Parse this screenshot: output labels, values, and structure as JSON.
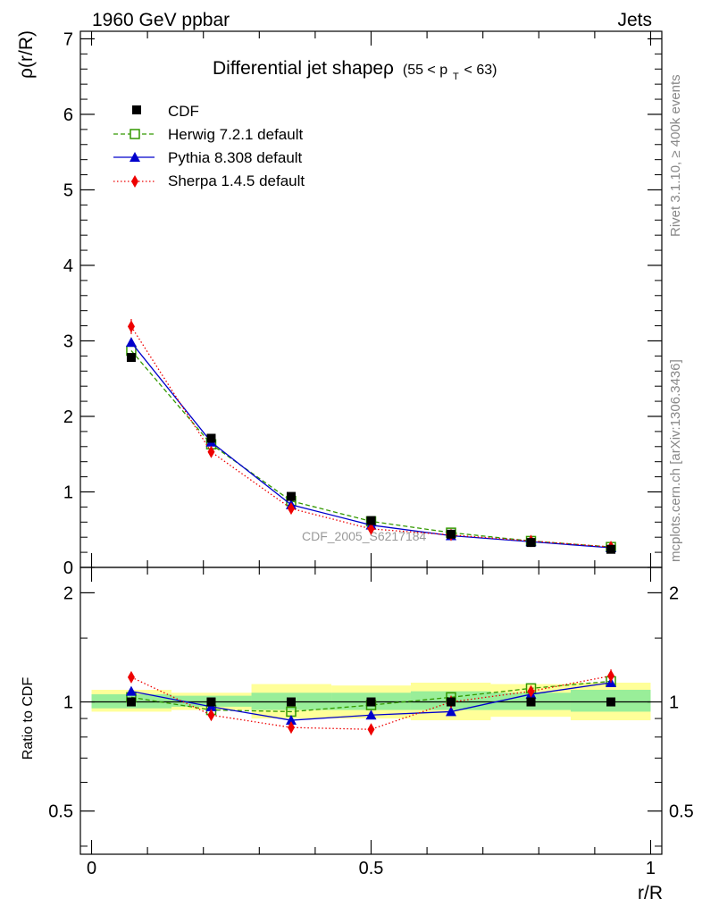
{
  "header": {
    "left": "1960 GeV ppbar",
    "right": "Jets"
  },
  "side": {
    "rivet": "Rivet 3.1.10, ≥ 400k events",
    "mcplots": "mcplots.cern.ch [arXiv:1306.3436]"
  },
  "chart_data": {
    "type": "line",
    "title": "Differential jet shapeρ",
    "title_suffix": "(55 < p",
    "title_sub": "T",
    "title_end": " < 63)",
    "ylabel": "ρ(r/R)",
    "xlabel": "r/R",
    "ratio_ylabel": "Ratio to CDF",
    "watermark": "CDF_2005_S6217184",
    "xlim": [
      -0.02,
      1.02
    ],
    "ylim": [
      0,
      7.1
    ],
    "ratio_ylim": [
      0.38,
      2.35
    ],
    "ratio_log": true,
    "xticks": [
      0,
      0.5,
      1
    ],
    "xtick_labels": [
      "0",
      "0.5",
      "1"
    ],
    "yticks": [
      0,
      1,
      2,
      3,
      4,
      5,
      6,
      7
    ],
    "ytick_labels": [
      "0",
      "1",
      "2",
      "3",
      "4",
      "5",
      "6",
      "7"
    ],
    "ratio_yticks": [
      0.5,
      1,
      2
    ],
    "ratio_ytick_labels": [
      "0.5",
      "1",
      "2"
    ],
    "x": [
      0.071,
      0.214,
      0.357,
      0.5,
      0.643,
      0.786,
      0.929
    ],
    "x_edges": [
      0,
      0.143,
      0.286,
      0.429,
      0.571,
      0.714,
      0.857,
      1.0
    ],
    "band_inner": [
      [
        0.96,
        1.05
      ],
      [
        0.97,
        1.04
      ],
      [
        0.95,
        1.06
      ],
      [
        0.95,
        1.06
      ],
      [
        0.95,
        1.07
      ],
      [
        0.95,
        1.06
      ],
      [
        0.94,
        1.08
      ]
    ],
    "band_outer": [
      [
        0.94,
        1.08
      ],
      [
        0.95,
        1.06
      ],
      [
        0.9,
        1.12
      ],
      [
        0.9,
        1.11
      ],
      [
        0.89,
        1.13
      ],
      [
        0.91,
        1.12
      ],
      [
        0.89,
        1.13
      ]
    ],
    "series": [
      {
        "name": "CDF",
        "color": "#000000",
        "marker": "square-filled",
        "line": "none",
        "values": [
          2.78,
          1.71,
          0.94,
          0.62,
          0.44,
          0.33,
          0.24
        ],
        "ratio": [
          1,
          1,
          1,
          1,
          1,
          1,
          1
        ],
        "err": [
          0,
          0,
          0,
          0,
          0,
          0,
          0
        ],
        "ratio_err": [
          0,
          0,
          0,
          0,
          0,
          0,
          0
        ]
      },
      {
        "name": "Herwig 7.2.1 default",
        "color": "#339900",
        "marker": "square-open",
        "line": "dashed",
        "values": [
          2.87,
          1.63,
          0.88,
          0.61,
          0.46,
          0.35,
          0.27
        ],
        "ratio": [
          1.03,
          0.95,
          0.94,
          0.98,
          1.03,
          1.09,
          1.14
        ],
        "err": [
          0,
          0,
          0,
          0,
          0,
          0,
          0
        ],
        "ratio_err": [
          0,
          0,
          0,
          0,
          0,
          0,
          0
        ]
      },
      {
        "name": "Pythia 8.308 default",
        "color": "#0000cc",
        "marker": "triangle",
        "line": "solid",
        "values": [
          2.98,
          1.66,
          0.83,
          0.56,
          0.42,
          0.34,
          0.26
        ],
        "ratio": [
          1.07,
          0.97,
          0.89,
          0.92,
          0.94,
          1.05,
          1.13
        ],
        "err": [
          0,
          0,
          0,
          0,
          0,
          0,
          0
        ],
        "ratio_err": [
          0,
          0,
          0,
          0,
          0,
          0,
          0
        ]
      },
      {
        "name": "Sherpa 1.4.5 default",
        "color": "#ee0000",
        "marker": "diamond",
        "line": "dotted",
        "values": [
          3.19,
          1.53,
          0.78,
          0.51,
          0.43,
          0.35,
          0.27
        ],
        "ratio": [
          1.17,
          0.92,
          0.85,
          0.84,
          1.0,
          1.07,
          1.18
        ],
        "err": [
          0.1,
          0.04,
          0.03,
          0.02,
          0.02,
          0.01,
          0.01
        ],
        "ratio_err": [
          0.03,
          0.02,
          0.03,
          0.03,
          0.04,
          0.03,
          0.05
        ]
      }
    ]
  }
}
